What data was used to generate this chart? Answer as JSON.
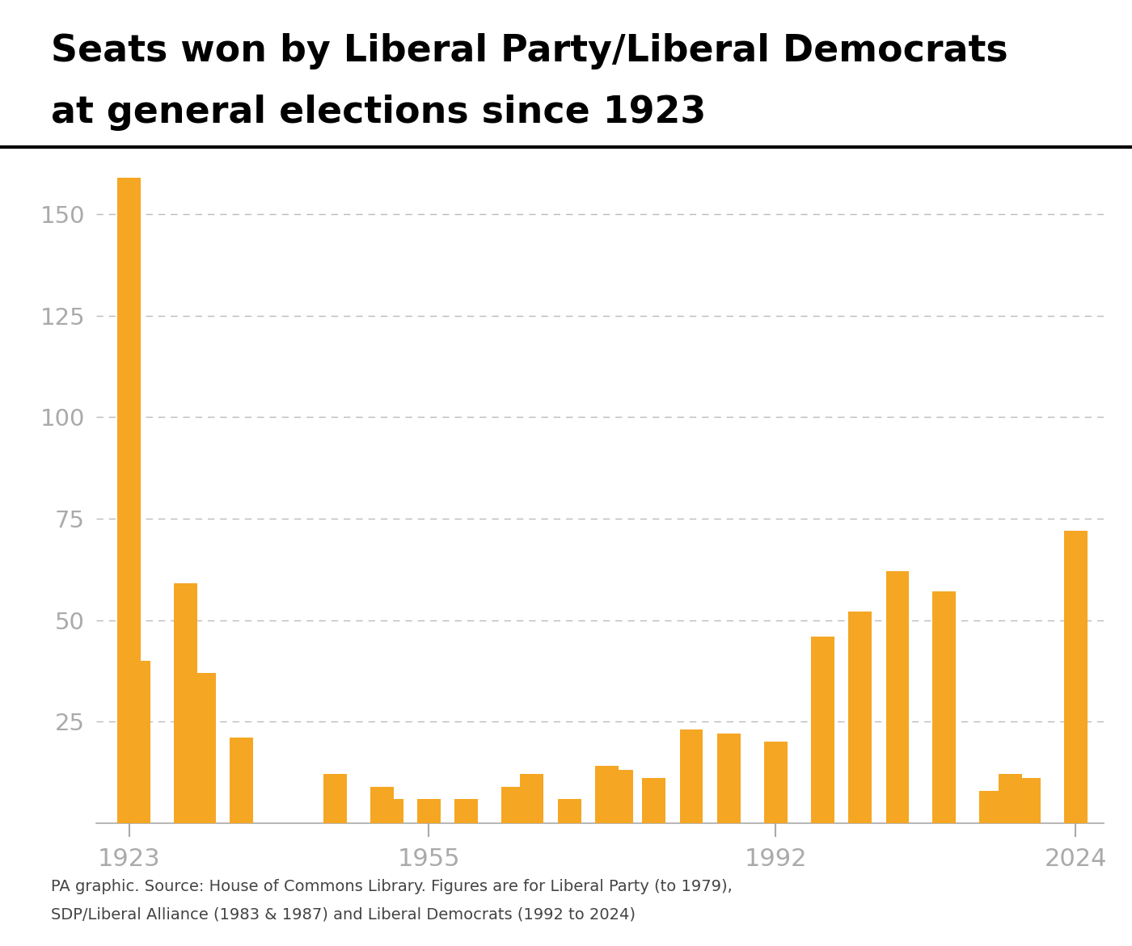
{
  "title_line1": "Seats won by Liberal Party/Liberal Democrats",
  "title_line2": "at general elections since 1923",
  "elections": [
    {
      "year": 1923,
      "seats": 159
    },
    {
      "year": 1924,
      "seats": 40
    },
    {
      "year": 1929,
      "seats": 59
    },
    {
      "year": 1931,
      "seats": 37
    },
    {
      "year": 1935,
      "seats": 21
    },
    {
      "year": 1945,
      "seats": 12
    },
    {
      "year": 1950,
      "seats": 9
    },
    {
      "year": 1951,
      "seats": 6
    },
    {
      "year": 1955,
      "seats": 6
    },
    {
      "year": 1959,
      "seats": 6
    },
    {
      "year": 1964,
      "seats": 9
    },
    {
      "year": 1966,
      "seats": 12
    },
    {
      "year": 1970,
      "seats": 6
    },
    {
      "year": 1974,
      "seats": 14
    },
    {
      "year": 1974,
      "seats": 13
    },
    {
      "year": 1979,
      "seats": 11
    },
    {
      "year": 1983,
      "seats": 23
    },
    {
      "year": 1987,
      "seats": 22
    },
    {
      "year": 1992,
      "seats": 20
    },
    {
      "year": 1997,
      "seats": 46
    },
    {
      "year": 2001,
      "seats": 52
    },
    {
      "year": 2005,
      "seats": 62
    },
    {
      "year": 2010,
      "seats": 57
    },
    {
      "year": 2015,
      "seats": 8
    },
    {
      "year": 2017,
      "seats": 12
    },
    {
      "year": 2019,
      "seats": 11
    },
    {
      "year": 2024,
      "seats": 72
    }
  ],
  "bar_color": "#F5A623",
  "background_color": "#FFFFFF",
  "tick_color": "#AAAAAA",
  "grid_color": "#BBBBBB",
  "title_color": "#000000",
  "yticks": [
    25,
    50,
    75,
    100,
    125,
    150
  ],
  "xtick_year_labels": [
    "1923",
    "1955",
    "1992",
    "2024"
  ],
  "xtick_years": [
    1923,
    1955,
    1992,
    2024
  ],
  "source_text_line1": "PA graphic. Source: House of Commons Library. Figures are for Liberal Party (to 1979),",
  "source_text_line2": "SDP/Liberal Alliance (1983 & 1987) and Liberal Democrats (1992 to 2024)",
  "ylim": [
    0,
    165
  ]
}
